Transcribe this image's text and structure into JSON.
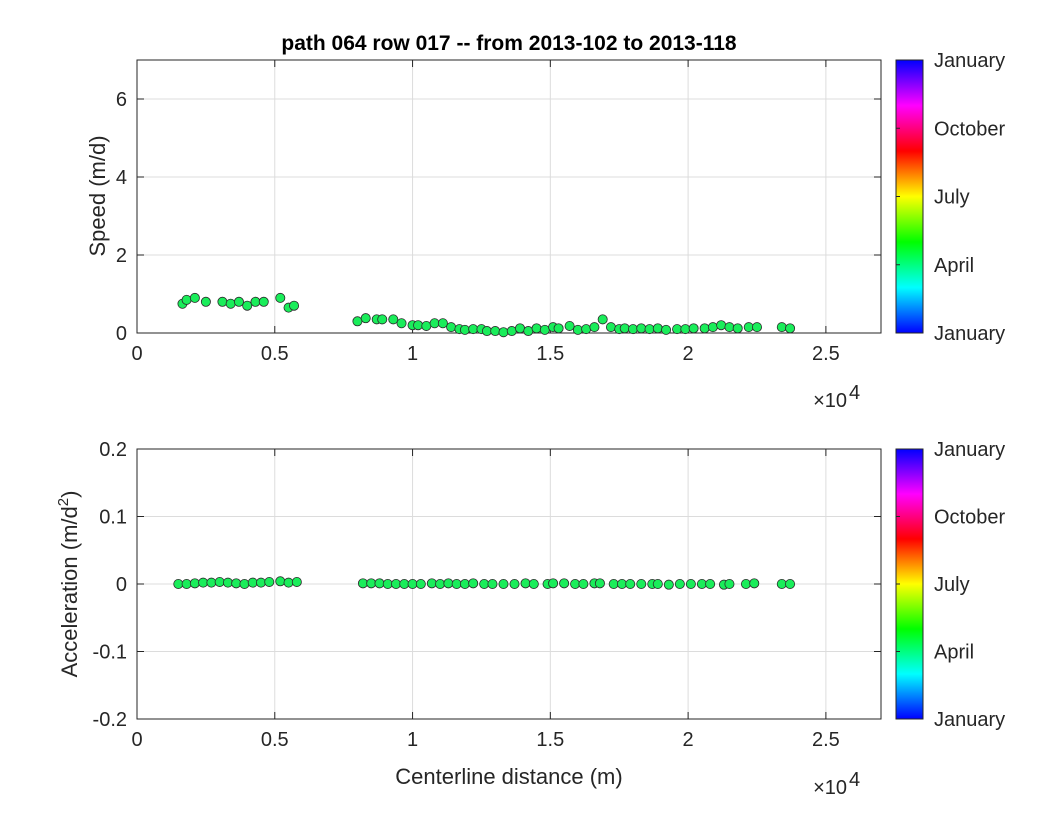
{
  "chart_data": [
    {
      "type": "scatter",
      "title": "path 064 row 017 -- from 2013-102 to 2013-118",
      "xlabel": "",
      "ylabel": "Speed (m/d)",
      "xlim": [
        0,
        27000
      ],
      "ylim": [
        0,
        7
      ],
      "xticks": [
        0,
        5000,
        10000,
        15000,
        20000,
        25000
      ],
      "xtick_labels": [
        "0",
        "0.5",
        "1",
        "1.5",
        "2",
        "2.5"
      ],
      "yticks": [
        0,
        2,
        4,
        6
      ],
      "ytick_labels": [
        "0",
        "2",
        "4",
        "6"
      ],
      "x_exponent_label": "×10",
      "x_exponent_power": "4",
      "grid": true,
      "marker_color": "#1aed5a",
      "colorbar": {
        "labels": [
          "January",
          "April",
          "July",
          "October",
          "January"
        ],
        "colormap": "hsv"
      },
      "x": [
        1650,
        1800,
        2100,
        2500,
        3100,
        3400,
        3700,
        4000,
        4300,
        4600,
        5200,
        5500,
        5700,
        8000,
        8300,
        8700,
        8900,
        9300,
        9600,
        10000,
        10200,
        10500,
        10800,
        11100,
        11400,
        11700,
        11900,
        12200,
        12500,
        12700,
        13000,
        13300,
        13600,
        13900,
        14200,
        14500,
        14800,
        15100,
        15300,
        15700,
        16000,
        16300,
        16600,
        16900,
        17200,
        17500,
        17700,
        18000,
        18300,
        18600,
        18900,
        19200,
        19600,
        19900,
        20200,
        20600,
        20900,
        21200,
        21500,
        21800,
        22200,
        22500,
        23400,
        23700
      ],
      "y": [
        0.75,
        0.85,
        0.9,
        0.8,
        0.8,
        0.75,
        0.8,
        0.7,
        0.8,
        0.8,
        0.9,
        0.65,
        0.7,
        0.3,
        0.38,
        0.35,
        0.35,
        0.35,
        0.25,
        0.2,
        0.2,
        0.18,
        0.25,
        0.25,
        0.15,
        0.1,
        0.08,
        0.1,
        0.1,
        0.05,
        0.05,
        0.02,
        0.05,
        0.12,
        0.05,
        0.12,
        0.08,
        0.15,
        0.12,
        0.18,
        0.08,
        0.1,
        0.15,
        0.35,
        0.15,
        0.1,
        0.12,
        0.1,
        0.12,
        0.1,
        0.12,
        0.08,
        0.1,
        0.1,
        0.12,
        0.12,
        0.15,
        0.2,
        0.15,
        0.12,
        0.15,
        0.15,
        0.15,
        0.12
      ]
    },
    {
      "type": "scatter",
      "title": "",
      "xlabel": "Centerline distance (m)",
      "ylabel_main": "Acceleration (m/d",
      "ylabel_sup": "2",
      "ylabel_end": ")",
      "xlim": [
        0,
        27000
      ],
      "ylim": [
        -0.2,
        0.2
      ],
      "xticks": [
        0,
        5000,
        10000,
        15000,
        20000,
        25000
      ],
      "xtick_labels": [
        "0",
        "0.5",
        "1",
        "1.5",
        "2",
        "2.5"
      ],
      "yticks": [
        -0.2,
        -0.1,
        0,
        0.1,
        0.2
      ],
      "ytick_labels": [
        "-0.2",
        "-0.1",
        "0",
        "0.1",
        "0.2"
      ],
      "x_exponent_label": "×10",
      "x_exponent_power": "4",
      "grid": true,
      "marker_color": "#1aed5a",
      "colorbar": {
        "labels": [
          "January",
          "April",
          "July",
          "October",
          "January"
        ],
        "colormap": "hsv"
      },
      "x": [
        1500,
        1800,
        2100,
        2400,
        2700,
        3000,
        3300,
        3600,
        3900,
        4200,
        4500,
        4800,
        5200,
        5500,
        5800,
        8200,
        8500,
        8800,
        9100,
        9400,
        9700,
        10000,
        10300,
        10700,
        11000,
        11300,
        11600,
        11900,
        12200,
        12600,
        12900,
        13300,
        13700,
        14100,
        14400,
        14900,
        15100,
        15500,
        15900,
        16200,
        16600,
        16800,
        17300,
        17600,
        17900,
        18300,
        18700,
        18900,
        19300,
        19700,
        20100,
        20500,
        20800,
        21300,
        21500,
        22100,
        22400,
        23400,
        23700
      ],
      "y": [
        0.0,
        0.0,
        0.001,
        0.002,
        0.002,
        0.003,
        0.002,
        0.001,
        0.0,
        0.002,
        0.002,
        0.003,
        0.004,
        0.002,
        0.003,
        0.001,
        0.001,
        0.001,
        0.0,
        0.0,
        0.0,
        0.0,
        0.0,
        0.001,
        0.0,
        0.001,
        0.0,
        0.0,
        0.001,
        0.0,
        0.0,
        0.0,
        0.0,
        0.001,
        0.0,
        0.0,
        0.001,
        0.001,
        0.0,
        0.0,
        0.001,
        0.001,
        0.0,
        0.0,
        0.0,
        0.0,
        0.0,
        0.0,
        -0.001,
        0.0,
        0.0,
        0.0,
        0.0,
        -0.001,
        0.0,
        0.0,
        0.001,
        0.0,
        0.0
      ]
    }
  ]
}
